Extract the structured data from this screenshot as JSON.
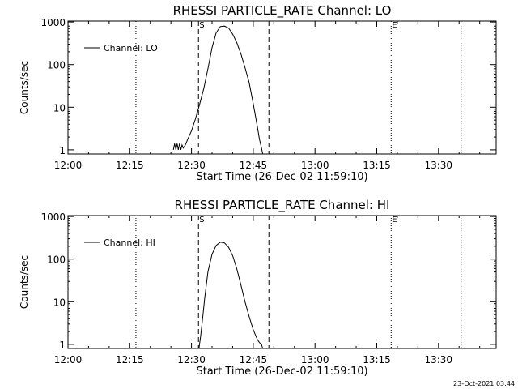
{
  "footer": {
    "timestamp": "23-Oct-2021 03:44"
  },
  "chart_data": [
    {
      "type": "line",
      "title": "RHESSI PARTICLE_RATE Channel: LO",
      "xlabel": "Start Time (26-Dec-02 11:59:10)",
      "ylabel": "Counts/sec",
      "yscale": "log",
      "xlim_minutes_after_1200": [
        0,
        104
      ],
      "ylim": [
        0.8,
        1050
      ],
      "x_ticks": [
        {
          "minute": 0,
          "label": "12:00"
        },
        {
          "minute": 15,
          "label": "12:15"
        },
        {
          "minute": 30,
          "label": "12:30"
        },
        {
          "minute": 45,
          "label": "12:45"
        },
        {
          "minute": 60,
          "label": "13:00"
        },
        {
          "minute": 75,
          "label": "13:15"
        },
        {
          "minute": 90,
          "label": "13:30"
        }
      ],
      "y_ticks": [
        {
          "value": 1,
          "label": "1"
        },
        {
          "value": 10,
          "label": "10"
        },
        {
          "value": 100,
          "label": "100"
        },
        {
          "value": 1000,
          "label": "1000"
        }
      ],
      "legend": {
        "label": "Channel: LO",
        "placement": "top-left"
      },
      "markers": [
        {
          "minute": 16.5,
          "style": "dotted",
          "label": ""
        },
        {
          "minute": 31.7,
          "style": "dashed",
          "label": "S"
        },
        {
          "minute": 48.8,
          "style": "dashed",
          "label": ""
        },
        {
          "minute": 78.5,
          "style": "dotted",
          "label": "E"
        },
        {
          "minute": 95.5,
          "style": "dotted",
          "label": ""
        }
      ],
      "series": [
        {
          "name": "Channel: LO",
          "x": [
            25.6,
            25.9,
            26.2,
            26.5,
            26.8,
            27.1,
            27.4,
            27.7,
            28.0,
            28.5,
            29.0,
            30.0,
            31.0,
            32.0,
            33.0,
            34.0,
            35.0,
            36.0,
            37.0,
            38.0,
            39.0,
            40.0,
            41.0,
            42.0,
            43.0,
            44.0,
            45.0,
            46.0,
            46.5,
            47.0,
            47.3
          ],
          "y": [
            1,
            1.4,
            1,
            1.4,
            1,
            1.4,
            1,
            1.3,
            1.1,
            1.3,
            1.7,
            2.8,
            5.5,
            12,
            28,
            80,
            250,
            560,
            780,
            800,
            720,
            520,
            330,
            180,
            85,
            38,
            12,
            3.5,
            1.8,
            1.1,
            0.8
          ]
        }
      ]
    },
    {
      "type": "line",
      "title": "RHESSI PARTICLE_RATE Channel: HI",
      "xlabel": "Start Time (26-Dec-02 11:59:10)",
      "ylabel": "Counts/sec",
      "yscale": "log",
      "xlim_minutes_after_1200": [
        0,
        104
      ],
      "ylim": [
        0.8,
        1050
      ],
      "x_ticks": [
        {
          "minute": 0,
          "label": "12:00"
        },
        {
          "minute": 15,
          "label": "12:15"
        },
        {
          "minute": 30,
          "label": "12:30"
        },
        {
          "minute": 45,
          "label": "12:45"
        },
        {
          "minute": 60,
          "label": "13:00"
        },
        {
          "minute": 75,
          "label": "13:15"
        },
        {
          "minute": 90,
          "label": "13:30"
        }
      ],
      "y_ticks": [
        {
          "value": 1,
          "label": "1"
        },
        {
          "value": 10,
          "label": "10"
        },
        {
          "value": 100,
          "label": "100"
        },
        {
          "value": 1000,
          "label": "1000"
        }
      ],
      "legend": {
        "label": "Channel: HI",
        "placement": "top-left"
      },
      "markers": [
        {
          "minute": 16.5,
          "style": "dotted",
          "label": ""
        },
        {
          "minute": 31.7,
          "style": "dashed",
          "label": "S"
        },
        {
          "minute": 48.8,
          "style": "dashed",
          "label": ""
        },
        {
          "minute": 78.5,
          "style": "dotted",
          "label": "E"
        },
        {
          "minute": 95.5,
          "style": "dotted",
          "label": ""
        }
      ],
      "series": [
        {
          "name": "Channel: HI",
          "x": [
            31.8,
            32.2,
            32.7,
            33.2,
            34.0,
            35.0,
            36.0,
            37.0,
            38.0,
            39.0,
            40.0,
            41.0,
            42.0,
            43.0,
            44.0,
            45.0,
            46.0,
            46.5,
            47.0,
            47.3
          ],
          "y": [
            0.8,
            1.5,
            4,
            12,
            50,
            130,
            210,
            250,
            240,
            190,
            120,
            60,
            25,
            10,
            4.5,
            2.2,
            1.3,
            1.1,
            1,
            0.8
          ]
        }
      ]
    }
  ]
}
